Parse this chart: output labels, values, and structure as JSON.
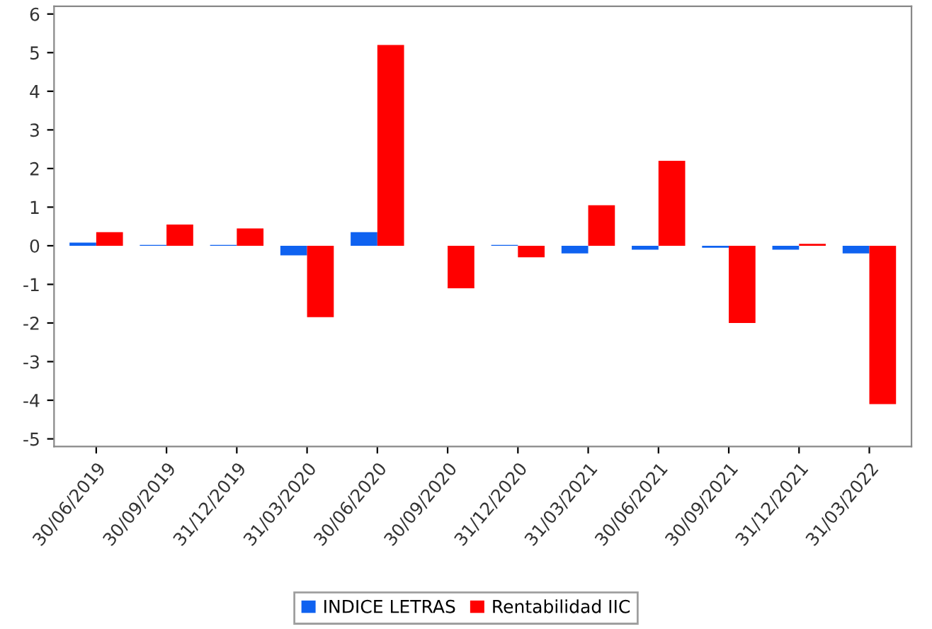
{
  "chart_data": {
    "type": "bar",
    "categories": [
      "30/06/2019",
      "30/09/2019",
      "31/12/2019",
      "31/03/2020",
      "30/06/2020",
      "30/09/2020",
      "31/12/2020",
      "31/03/2021",
      "30/06/2021",
      "30/09/2021",
      "31/12/2021",
      "31/03/2022"
    ],
    "series": [
      {
        "name": "INDICE LETRAS",
        "color": "#0f62f0",
        "values": [
          0.08,
          0.02,
          0.02,
          -0.25,
          0.35,
          0.0,
          0.02,
          -0.2,
          -0.1,
          -0.05,
          -0.1,
          -0.2
        ]
      },
      {
        "name": "Rentabilidad IIC",
        "color": "#ff0000",
        "values": [
          0.35,
          0.55,
          0.45,
          -1.85,
          5.2,
          -1.1,
          -0.3,
          1.05,
          2.2,
          -2.0,
          0.05,
          -4.1
        ]
      }
    ],
    "ylim": [
      -5.2,
      6.2
    ],
    "yticks": [
      -5,
      -4,
      -3,
      -2,
      -1,
      0,
      1,
      2,
      3,
      4,
      5,
      6
    ],
    "grid": false,
    "legend": "bottom"
  }
}
